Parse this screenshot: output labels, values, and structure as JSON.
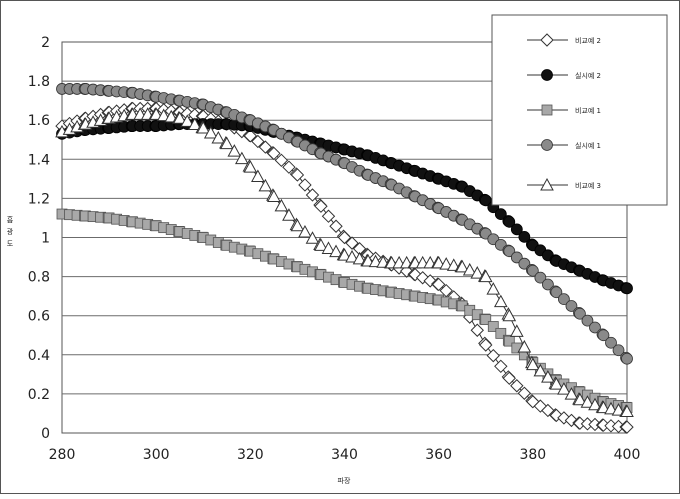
{
  "chart_data": {
    "type": "line",
    "xlabel": "파장",
    "ylabel": "흡광도",
    "xlim": [
      280,
      400
    ],
    "ylim": [
      0,
      2
    ],
    "x_ticks": [
      280,
      300,
      320,
      340,
      360,
      380,
      400
    ],
    "y_ticks": [
      "0",
      "0.2",
      "0.4",
      "0.6",
      "0.8",
      "1",
      "1.2",
      "1.4",
      "1.6",
      "1.8",
      "2"
    ],
    "grid": "horizontal",
    "legend_position": "top-right",
    "series": [
      {
        "name": "비교예 2",
        "marker": "diamond-open",
        "points": [
          [
            280,
            1.57
          ],
          [
            285,
            1.61
          ],
          [
            290,
            1.64
          ],
          [
            295,
            1.66
          ],
          [
            300,
            1.66
          ],
          [
            305,
            1.64
          ],
          [
            310,
            1.62
          ],
          [
            315,
            1.58
          ],
          [
            320,
            1.52
          ],
          [
            325,
            1.43
          ],
          [
            330,
            1.32
          ],
          [
            335,
            1.16
          ],
          [
            340,
            1.0
          ],
          [
            345,
            0.91
          ],
          [
            350,
            0.86
          ],
          [
            355,
            0.81
          ],
          [
            360,
            0.76
          ],
          [
            365,
            0.66
          ],
          [
            370,
            0.45
          ],
          [
            375,
            0.28
          ],
          [
            380,
            0.16
          ],
          [
            385,
            0.09
          ],
          [
            390,
            0.05
          ],
          [
            395,
            0.04
          ],
          [
            400,
            0.03
          ]
        ]
      },
      {
        "name": "실시예 2",
        "marker": "circle-filled",
        "points": [
          [
            280,
            1.53
          ],
          [
            285,
            1.55
          ],
          [
            290,
            1.56
          ],
          [
            295,
            1.57
          ],
          [
            300,
            1.57
          ],
          [
            305,
            1.58
          ],
          [
            310,
            1.58
          ],
          [
            315,
            1.58
          ],
          [
            320,
            1.57
          ],
          [
            325,
            1.54
          ],
          [
            330,
            1.51
          ],
          [
            335,
            1.48
          ],
          [
            340,
            1.45
          ],
          [
            345,
            1.42
          ],
          [
            350,
            1.38
          ],
          [
            355,
            1.34
          ],
          [
            360,
            1.3
          ],
          [
            365,
            1.26
          ],
          [
            370,
            1.19
          ],
          [
            375,
            1.08
          ],
          [
            380,
            0.96
          ],
          [
            385,
            0.88
          ],
          [
            390,
            0.83
          ],
          [
            395,
            0.78
          ],
          [
            400,
            0.74
          ]
        ]
      },
      {
        "name": "비교예 1",
        "marker": "square-filled",
        "points": [
          [
            280,
            1.12
          ],
          [
            285,
            1.11
          ],
          [
            290,
            1.1
          ],
          [
            295,
            1.08
          ],
          [
            300,
            1.06
          ],
          [
            305,
            1.03
          ],
          [
            310,
            1.0
          ],
          [
            315,
            0.96
          ],
          [
            320,
            0.93
          ],
          [
            325,
            0.89
          ],
          [
            330,
            0.85
          ],
          [
            335,
            0.81
          ],
          [
            340,
            0.77
          ],
          [
            345,
            0.74
          ],
          [
            350,
            0.72
          ],
          [
            355,
            0.7
          ],
          [
            360,
            0.68
          ],
          [
            365,
            0.65
          ],
          [
            370,
            0.58
          ],
          [
            375,
            0.47
          ],
          [
            380,
            0.36
          ],
          [
            385,
            0.27
          ],
          [
            390,
            0.21
          ],
          [
            395,
            0.16
          ],
          [
            400,
            0.13
          ]
        ]
      },
      {
        "name": "실시예 1",
        "marker": "circle-gray",
        "points": [
          [
            280,
            1.76
          ],
          [
            285,
            1.76
          ],
          [
            290,
            1.75
          ],
          [
            295,
            1.74
          ],
          [
            300,
            1.72
          ],
          [
            305,
            1.7
          ],
          [
            310,
            1.68
          ],
          [
            315,
            1.64
          ],
          [
            320,
            1.6
          ],
          [
            325,
            1.55
          ],
          [
            330,
            1.49
          ],
          [
            335,
            1.43
          ],
          [
            340,
            1.38
          ],
          [
            345,
            1.32
          ],
          [
            350,
            1.27
          ],
          [
            355,
            1.21
          ],
          [
            360,
            1.15
          ],
          [
            365,
            1.09
          ],
          [
            370,
            1.02
          ],
          [
            375,
            0.93
          ],
          [
            380,
            0.83
          ],
          [
            385,
            0.72
          ],
          [
            390,
            0.61
          ],
          [
            395,
            0.5
          ],
          [
            400,
            0.38
          ]
        ]
      },
      {
        "name": "비교예 3",
        "marker": "triangle-open",
        "points": [
          [
            280,
            1.54
          ],
          [
            285,
            1.58
          ],
          [
            290,
            1.61
          ],
          [
            295,
            1.63
          ],
          [
            300,
            1.63
          ],
          [
            305,
            1.61
          ],
          [
            310,
            1.56
          ],
          [
            315,
            1.48
          ],
          [
            320,
            1.36
          ],
          [
            325,
            1.21
          ],
          [
            330,
            1.06
          ],
          [
            335,
            0.96
          ],
          [
            340,
            0.91
          ],
          [
            345,
            0.88
          ],
          [
            350,
            0.87
          ],
          [
            355,
            0.87
          ],
          [
            360,
            0.87
          ],
          [
            365,
            0.85
          ],
          [
            370,
            0.8
          ],
          [
            375,
            0.6
          ],
          [
            380,
            0.35
          ],
          [
            385,
            0.25
          ],
          [
            390,
            0.17
          ],
          [
            395,
            0.13
          ],
          [
            400,
            0.11
          ]
        ]
      }
    ]
  }
}
